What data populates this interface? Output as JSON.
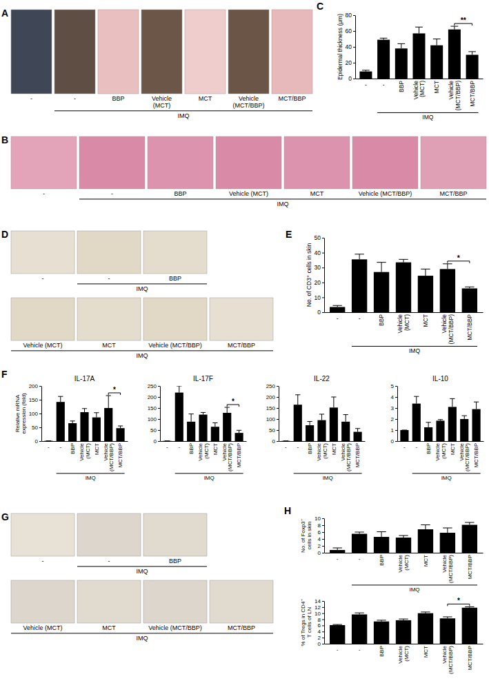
{
  "chart_data": [
    {
      "letter": "C",
      "type": "bar",
      "ylabel": "Epidermal thickness (μm)",
      "categories": [
        "-",
        "-",
        "BBP",
        "Vehicle (MCT)",
        "MCT",
        "Vehicle (MCT/BBP)",
        "MCT/BBP"
      ],
      "values": [
        9,
        49,
        38,
        57,
        42,
        62,
        30
      ],
      "errors": [
        1.5,
        2,
        6,
        8,
        8,
        4,
        4
      ],
      "color": "#000000",
      "ylim": [
        0,
        80
      ],
      "yticks": [
        0,
        20,
        40,
        60,
        80
      ],
      "group": {
        "label": "IMQ",
        "from": 1,
        "to": 6
      },
      "annotations": [
        {
          "text": "**",
          "categories": [
            5,
            6
          ]
        }
      ]
    },
    {
      "letter": "E",
      "type": "bar",
      "ylabel": "No. of CD3⁺ cells in skin",
      "categories": [
        "-",
        "-",
        "BBP",
        "Vehicle (MCT)",
        "MCT",
        "Vehicle (MCT/BBP)",
        "MCT/BBP"
      ],
      "values": [
        3.5,
        35.5,
        27,
        33.5,
        24.5,
        29,
        16
      ],
      "errors": [
        1,
        3.5,
        6.5,
        2,
        4.5,
        3.5,
        1
      ],
      "color": "#000000",
      "ylim": [
        0,
        50
      ],
      "yticks": [
        0,
        10,
        20,
        30,
        40,
        50
      ],
      "group": {
        "label": "IMQ",
        "from": 1,
        "to": 6
      },
      "annotations": [
        {
          "text": "*",
          "categories": [
            5,
            6
          ]
        }
      ]
    },
    {
      "letter": "F",
      "type": "bar",
      "title": "IL-17A",
      "ylabel": "Relative mRNA expression (fold)",
      "categories": [
        "-",
        "-",
        "BBP",
        "Vehicle (MCT)",
        "MCT",
        "Vehicle (MCT/BBP)",
        "MCT/BBP"
      ],
      "values": [
        1,
        142,
        65,
        105,
        86,
        120,
        47
      ],
      "errors": [
        0,
        20,
        8,
        13,
        17,
        45,
        8
      ],
      "color": "#000000",
      "ylim": [
        0,
        200
      ],
      "yticks": [
        0,
        50,
        100,
        150,
        200
      ],
      "group": {
        "label": "IMQ",
        "from": 1,
        "to": 6
      },
      "annotations": [
        {
          "text": "*",
          "categories": [
            5,
            6
          ]
        }
      ]
    },
    {
      "type": "bar",
      "title": "IL-17F",
      "categories": [
        "-",
        "-",
        "BBP",
        "Vehicle (MCT)",
        "MCT",
        "Vehicle (MCT/BBP)",
        "MCT/BBP"
      ],
      "values": [
        1,
        220,
        88,
        120,
        65,
        128,
        37
      ],
      "errors": [
        0,
        30,
        35,
        10,
        18,
        25,
        12
      ],
      "color": "#000000",
      "ylim": [
        0,
        250
      ],
      "yticks": [
        0,
        50,
        100,
        150,
        200,
        250
      ],
      "group": {
        "label": "IMQ",
        "from": 1,
        "to": 6
      },
      "annotations": [
        {
          "text": "*",
          "categories": [
            5,
            6
          ]
        }
      ]
    },
    {
      "type": "bar",
      "title": "IL-22",
      "categories": [
        "-",
        "-",
        "BBP",
        "Vehicle (MCT)",
        "MCT",
        "Vehicle (MCT/BBP)",
        "MCT/BBP"
      ],
      "values": [
        1,
        165,
        72,
        95,
        152,
        88,
        42
      ],
      "errors": [
        0,
        45,
        17,
        27,
        48,
        32,
        15
      ],
      "color": "#000000",
      "ylim": [
        0,
        250
      ],
      "yticks": [
        0,
        50,
        100,
        150,
        200,
        250
      ],
      "group": {
        "label": "IMQ",
        "from": 1,
        "to": 6
      }
    },
    {
      "type": "bar",
      "title": "IL-10",
      "categories": [
        "-",
        "-",
        "BBP",
        "Vehicle (MCT)",
        "MCT",
        "Vehicle (MCT/BBP)",
        "MCT/BBP"
      ],
      "values": [
        1,
        3.4,
        1.25,
        1.85,
        3.1,
        2.0,
        2.9
      ],
      "errors": [
        0,
        0.65,
        0.45,
        0.1,
        0.75,
        0.3,
        0.65
      ],
      "color": "#000000",
      "ylim": [
        0,
        5
      ],
      "yticks": [
        0,
        1,
        2,
        3,
        4,
        5
      ],
      "group": {
        "label": "IMQ",
        "from": 1,
        "to": 6
      }
    },
    {
      "letter": "H",
      "type": "bar",
      "ylabel": "No. of Foxp3⁺ cells in skin",
      "categories": [
        "-",
        "-",
        "BBP",
        "Vehicle (MCT)",
        "MCT",
        "Vehicle (MCT/BBP)",
        "MCT/BBP"
      ],
      "values": [
        0.8,
        5.5,
        4.6,
        4.4,
        6.8,
        5.8,
        8.1
      ],
      "errors": [
        0.6,
        0.5,
        1.5,
        0.6,
        1.3,
        1.4,
        0.7
      ],
      "color": "#000000",
      "ylim": [
        0,
        10
      ],
      "yticks": [
        0,
        2,
        4,
        6,
        8,
        10
      ],
      "group": {
        "label": "IMQ",
        "from": 1,
        "to": 6
      }
    },
    {
      "type": "bar",
      "ylabel": "% of Tregs in CD4⁺ T cells of LN",
      "categories": [
        "-",
        "-",
        "BBP",
        "Vehicle (MCT)",
        "MCT",
        "Vehicle (MCT/BBP)",
        "MCT/BBP"
      ],
      "values": [
        6.1,
        9.6,
        7.3,
        7.7,
        10.0,
        8.3,
        11.8
      ],
      "errors": [
        0.2,
        0.5,
        0.4,
        0.4,
        0.4,
        0.5,
        0.3
      ],
      "color": "#000000",
      "ylim": [
        0,
        14
      ],
      "yticks": [
        0,
        2,
        4,
        6,
        8,
        10,
        12,
        14
      ],
      "annotations": [
        {
          "text": "*",
          "categories": [
            5,
            6
          ]
        }
      ]
    }
  ],
  "image_panels": [
    {
      "letter": "A",
      "rows": [
        {
          "labels": [
            "-",
            "-",
            "BBP",
            "Vehicle (MCT)",
            "MCT",
            "Vehicle (MCT/BBP)",
            "MCT/BBP"
          ],
          "colors": [
            "#3f4656",
            "#5e4e44",
            "#e9bfbf",
            "#6b5648",
            "#efcdcd",
            "#6a5546",
            "#e8b9ba"
          ],
          "group": {
            "label": "IMQ",
            "from": 1,
            "to": 6
          }
        }
      ]
    },
    {
      "letter": "B",
      "rows": [
        {
          "labels": [
            "-",
            "-",
            "BBP",
            "Vehicle (MCT)",
            "MCT",
            "Vehicle (MCT/BBP)",
            "MCT/BBP"
          ],
          "colors": [
            "#e3a3b8",
            "#d98aa6",
            "#dc93ad",
            "#d98aa6",
            "#dc93ad",
            "#d98aa6",
            "#dfa0b5"
          ],
          "group": {
            "label": "IMQ",
            "from": 1,
            "to": 6
          }
        }
      ]
    },
    {
      "letter": "D",
      "rows": [
        {
          "labels": [
            "-",
            "-",
            "BBP"
          ],
          "colors": [
            "#e6dfd2",
            "#e2d8c6",
            "#e4dccd"
          ],
          "group": {
            "label": "IMQ",
            "from": 1,
            "to": 2
          }
        },
        {
          "labels": [
            "Vehicle (MCT)",
            "MCT",
            "Vehicle (MCT/BBP)",
            "MCT/BBP"
          ],
          "colors": [
            "#e2d8c6",
            "#e4dccd",
            "#e2d8c6",
            "#e6dfd2"
          ],
          "group": {
            "label": "IMQ",
            "from": 0,
            "to": 3
          }
        }
      ]
    },
    {
      "letter": "G",
      "rows": [
        {
          "labels": [
            "-",
            "-",
            "BBP"
          ],
          "colors": [
            "#e8e2d6",
            "#dcd6cc",
            "#e0dacf"
          ],
          "group": {
            "label": "IMQ",
            "from": 1,
            "to": 2
          }
        },
        {
          "labels": [
            "Vehicle (MCT)",
            "MCT",
            "Vehicle (MCT/BBP)",
            "MCT/BBP"
          ],
          "colors": [
            "#dcd6cc",
            "#e0dacf",
            "#dcd6cc",
            "#e0dacf"
          ],
          "group": {
            "label": "IMQ",
            "from": 0,
            "to": 3
          }
        }
      ]
    }
  ]
}
